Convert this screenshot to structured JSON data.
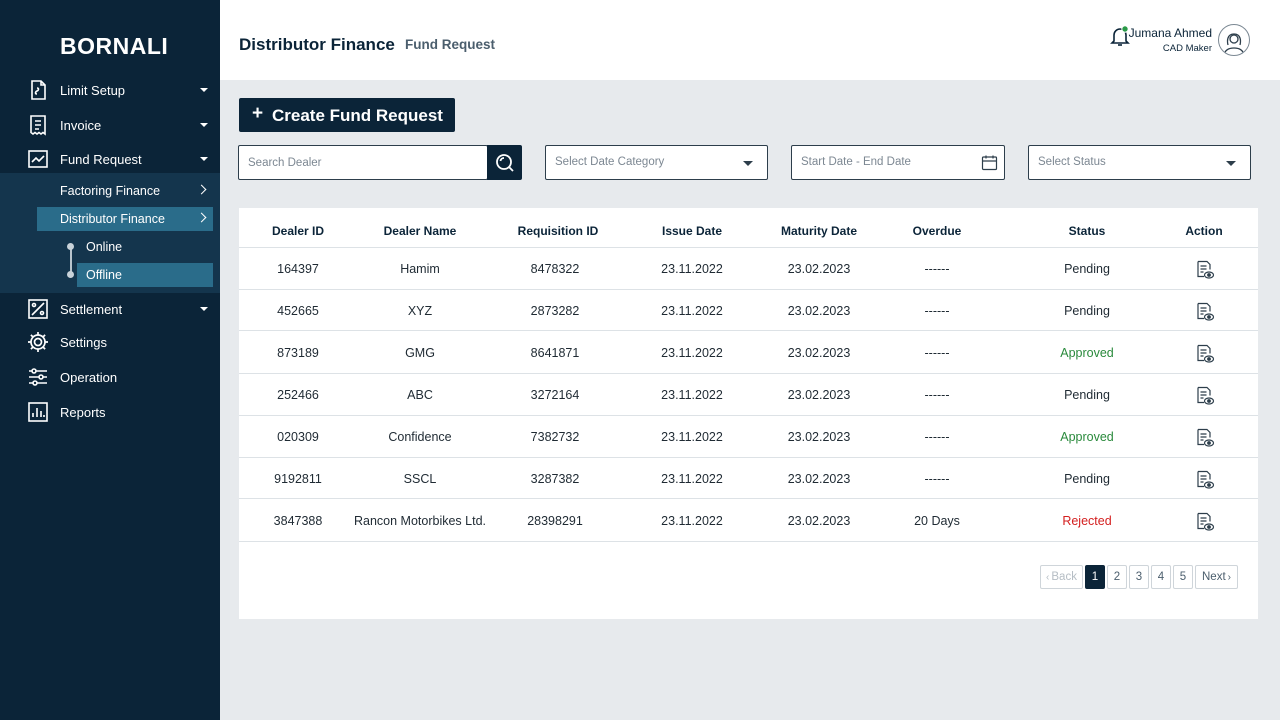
{
  "app": {
    "brand": "BORNALI"
  },
  "sidebar": {
    "items": [
      {
        "label": "Limit Setup",
        "icon": "limit-setup-icon"
      },
      {
        "label": "Invoice",
        "icon": "invoice-icon"
      },
      {
        "label": "Fund Request",
        "icon": "fund-request-icon"
      },
      {
        "label": "Settlement",
        "icon": "settlement-icon"
      },
      {
        "label": "Settings",
        "icon": "gear-icon"
      },
      {
        "label": "Operation",
        "icon": "sliders-icon"
      },
      {
        "label": "Reports",
        "icon": "reports-icon"
      }
    ],
    "fund_request_sub": [
      {
        "label": "Factoring Finance"
      },
      {
        "label": "Distributor Finance"
      }
    ],
    "distributor_sub": [
      {
        "label": "Online"
      },
      {
        "label": "Offline"
      }
    ]
  },
  "header": {
    "title": "Distributor Finance",
    "subtitle": "Fund Request",
    "user_name": "Jumana Ahmed",
    "user_role": "CAD Maker"
  },
  "toolbar": {
    "create_plus": "+",
    "create_label": "Create Fund Request",
    "search_placeholder": "Search Dealer",
    "date_category": "Select Date Category",
    "date_range": "Start Date - End Date",
    "status": "Select Status"
  },
  "table": {
    "columns": [
      "Dealer ID",
      "Dealer Name",
      "Requisition ID",
      "Issue Date",
      "Maturity Date",
      "Overdue",
      "Status",
      "Action"
    ],
    "rows": [
      {
        "dealer_id": "164397",
        "dealer_name": "Hamim",
        "requisition_id": "8478322",
        "issue_date": "23.11.2022",
        "maturity_date": "23.02.2023",
        "overdue": "------",
        "status": "Pending"
      },
      {
        "dealer_id": "452665",
        "dealer_name": "XYZ",
        "requisition_id": "2873282",
        "issue_date": "23.11.2022",
        "maturity_date": "23.02.2023",
        "overdue": "------",
        "status": "Pending"
      },
      {
        "dealer_id": "873189",
        "dealer_name": "GMG",
        "requisition_id": "8641871",
        "issue_date": "23.11.2022",
        "maturity_date": "23.02.2023",
        "overdue": "------",
        "status": "Approved"
      },
      {
        "dealer_id": "252466",
        "dealer_name": "ABC",
        "requisition_id": "3272164",
        "issue_date": "23.11.2022",
        "maturity_date": "23.02.2023",
        "overdue": "------",
        "status": "Pending"
      },
      {
        "dealer_id": "020309",
        "dealer_name": "Confidence",
        "requisition_id": "7382732",
        "issue_date": "23.11.2022",
        "maturity_date": "23.02.2023",
        "overdue": "------",
        "status": "Approved"
      },
      {
        "dealer_id": "9192811",
        "dealer_name": "SSCL",
        "requisition_id": "3287382",
        "issue_date": "23.11.2022",
        "maturity_date": "23.02.2023",
        "overdue": "------",
        "status": "Pending"
      },
      {
        "dealer_id": "3847388",
        "dealer_name": "Rancon Motorbikes Ltd.",
        "requisition_id": "28398291",
        "issue_date": "23.11.2022",
        "maturity_date": "23.02.2023",
        "overdue": "20 Days",
        "status": "Rejected"
      }
    ],
    "status_colors": {
      "Pending": "#1f2a33",
      "Approved": "#2a8a3c",
      "Rejected": "#d42020"
    }
  },
  "pagination": {
    "back": "Back",
    "next": "Next",
    "pages": [
      "1",
      "2",
      "3",
      "4",
      "5"
    ],
    "current": "1"
  },
  "colors": {
    "sidebar": "#0b2438",
    "active": "#2a6c8a",
    "accent": "#0b2438"
  }
}
